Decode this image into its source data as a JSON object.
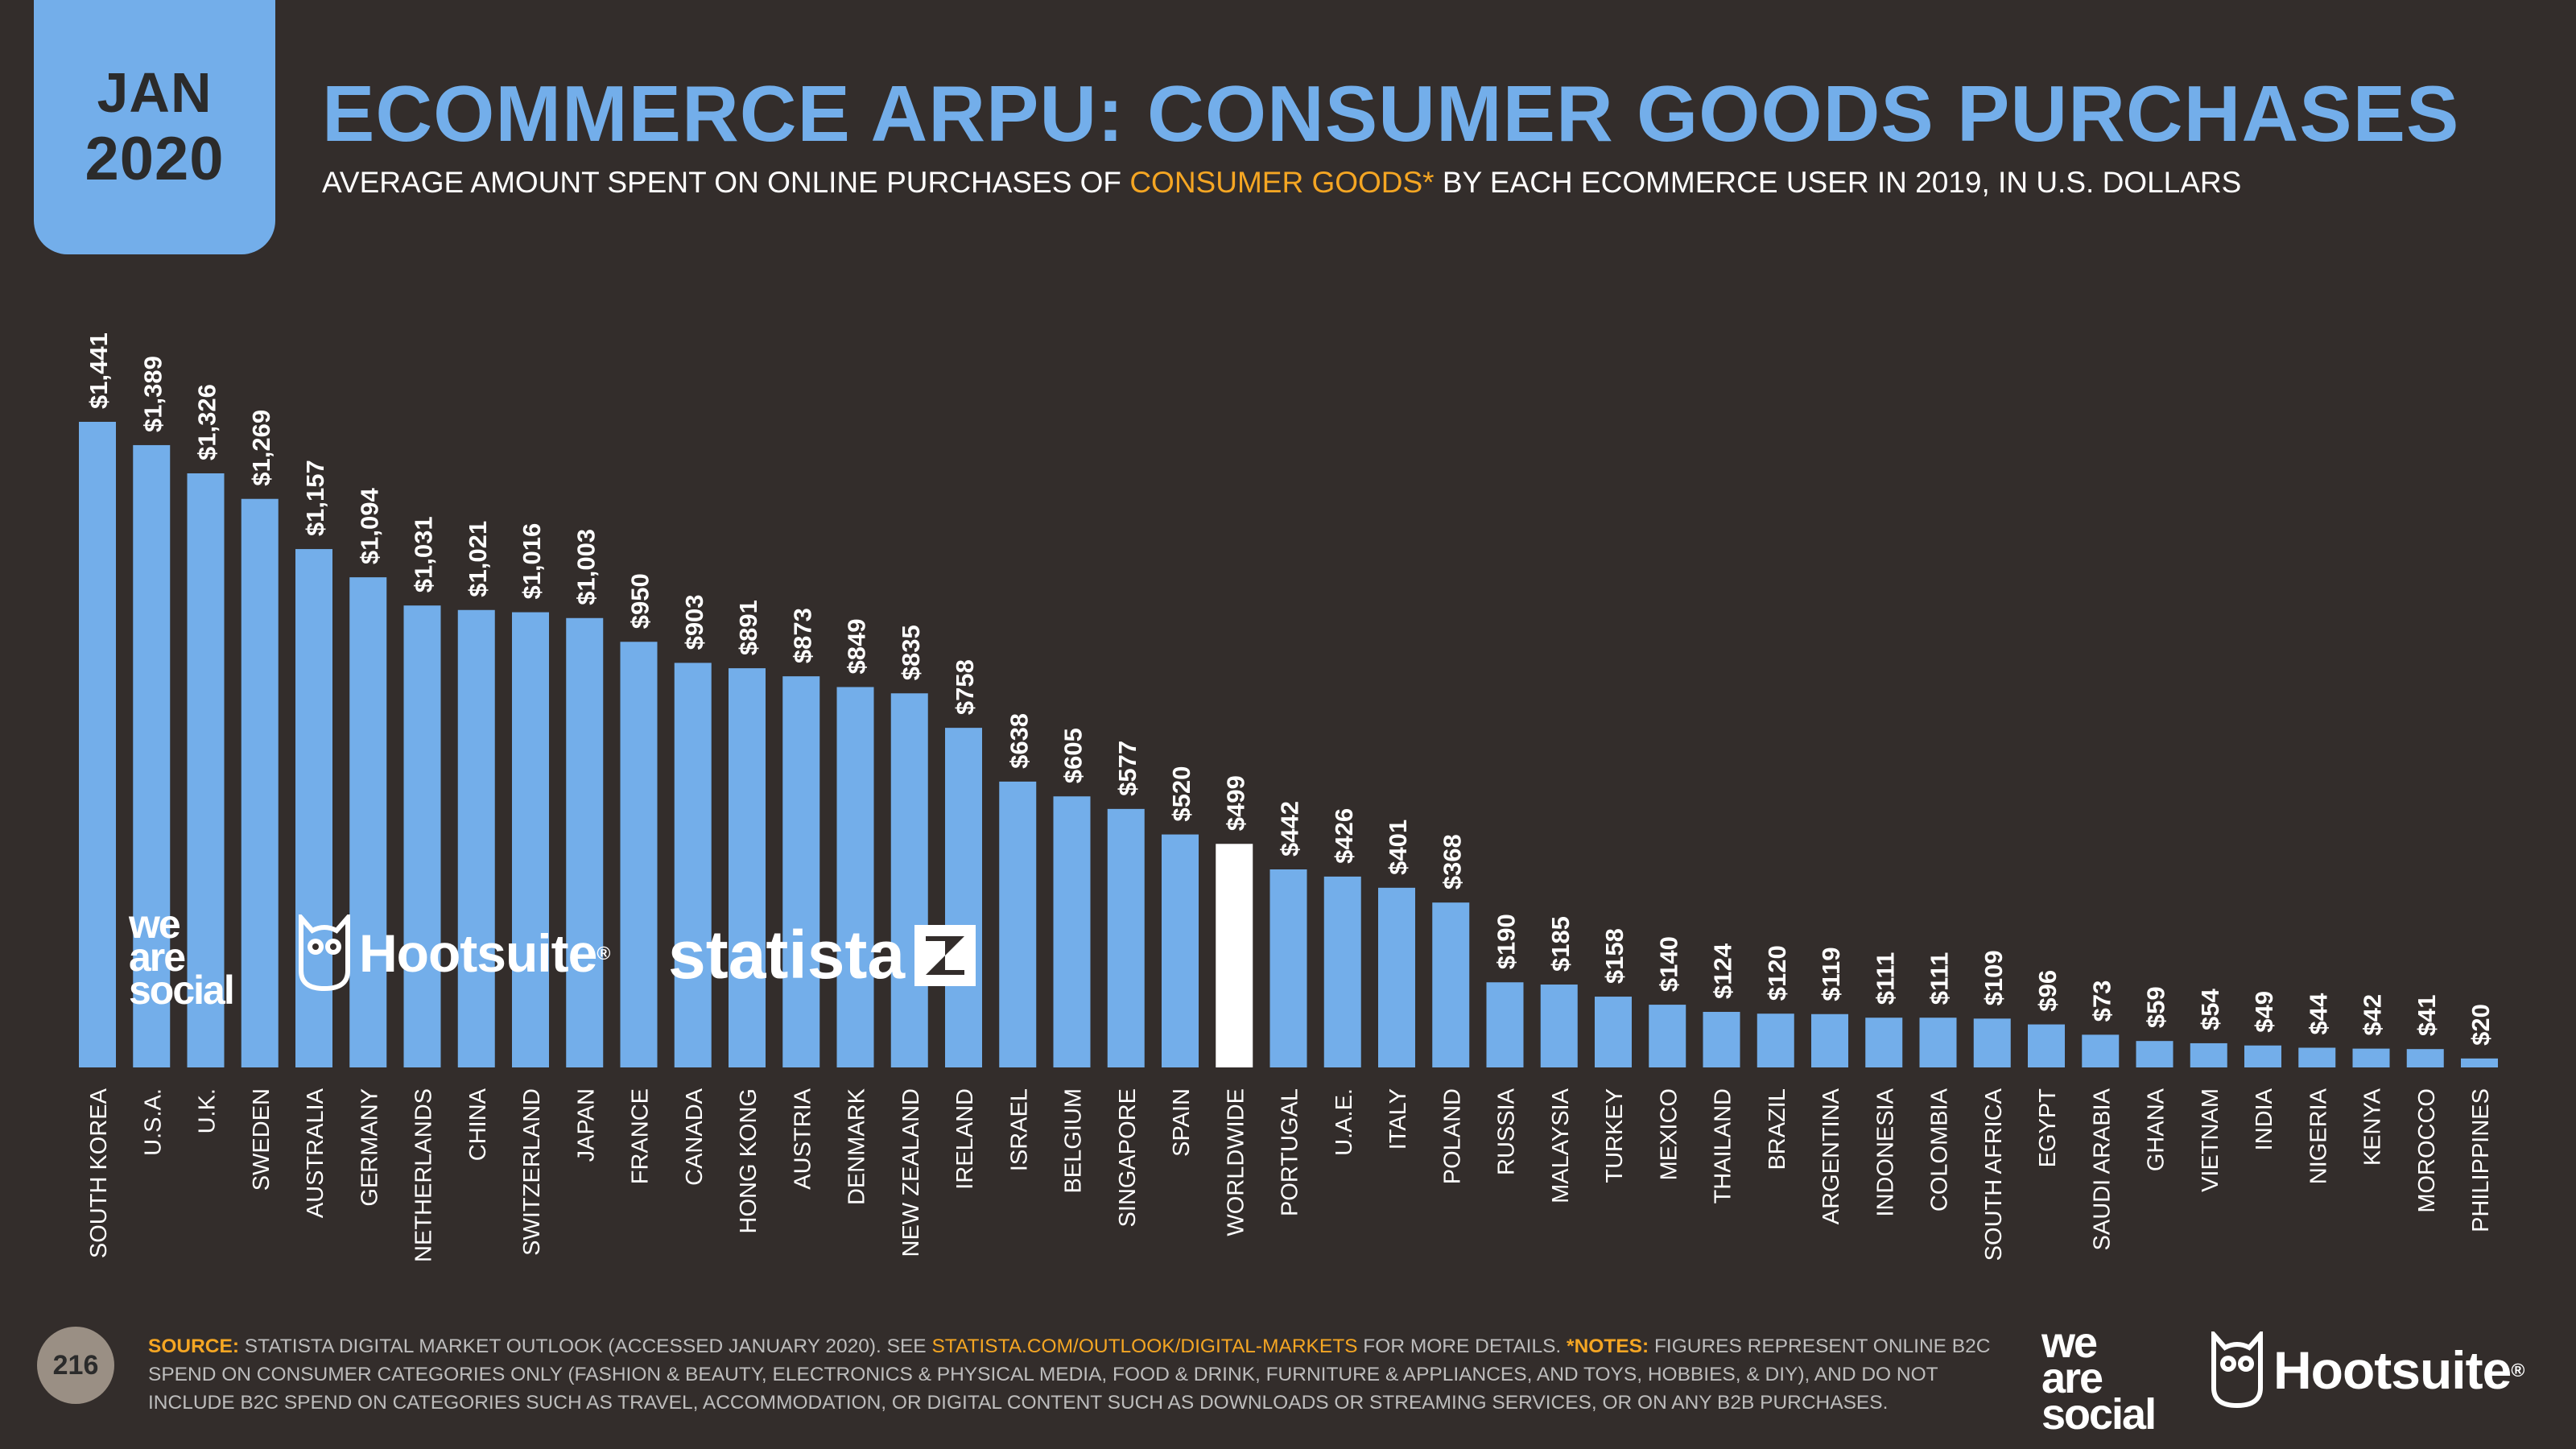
{
  "header": {
    "month": "JAN",
    "year": "2020",
    "title": "ECOMMERCE ARPU: CONSUMER GOODS PURCHASES",
    "subtitle_before": "AVERAGE AMOUNT SPENT ON ONLINE PURCHASES OF ",
    "subtitle_highlight": "CONSUMER GOODS*",
    "subtitle_after": " BY EACH ECOMMERCE USER IN 2019, IN U.S. DOLLARS"
  },
  "colors": {
    "background": "#332d2b",
    "bar": "#73aeea",
    "highlight_bar": "#ffffff",
    "accent": "#f5a623",
    "axis_text": "#ffffff"
  },
  "chart_data": {
    "type": "bar",
    "title": "ECOMMERCE ARPU: CONSUMER GOODS PURCHASES",
    "xlabel": "",
    "ylabel": "",
    "ylim": [
      0,
      1441
    ],
    "grid": false,
    "highlight": "WORLDWIDE",
    "categories": [
      "SOUTH KOREA",
      "U.S.A.",
      "U.K.",
      "SWEDEN",
      "AUSTRALIA",
      "GERMANY",
      "NETHERLANDS",
      "CHINA",
      "SWITZERLAND",
      "JAPAN",
      "FRANCE",
      "CANADA",
      "HONG KONG",
      "AUSTRIA",
      "DENMARK",
      "NEW ZEALAND",
      "IRELAND",
      "ISRAEL",
      "BELGIUM",
      "SINGAPORE",
      "SPAIN",
      "WORLDWIDE",
      "PORTUGAL",
      "U.A.E.",
      "ITALY",
      "POLAND",
      "RUSSIA",
      "MALAYSIA",
      "TURKEY",
      "MEXICO",
      "THAILAND",
      "BRAZIL",
      "ARGENTINA",
      "INDONESIA",
      "COLOMBIA",
      "SOUTH AFRICA",
      "EGYPT",
      "SAUDI ARABIA",
      "GHANA",
      "VIETNAM",
      "INDIA",
      "NIGERIA",
      "KENYA",
      "MOROCCO",
      "PHILIPPINES"
    ],
    "values": [
      1441,
      1389,
      1326,
      1269,
      1157,
      1094,
      1031,
      1021,
      1016,
      1003,
      950,
      903,
      891,
      873,
      849,
      835,
      758,
      638,
      605,
      577,
      520,
      499,
      442,
      426,
      401,
      368,
      190,
      185,
      158,
      140,
      124,
      120,
      119,
      111,
      111,
      109,
      96,
      73,
      59,
      54,
      49,
      44,
      42,
      41,
      20
    ],
    "labels": [
      "$1,441",
      "$1,389",
      "$1,326",
      "$1,269",
      "$1,157",
      "$1,094",
      "$1,031",
      "$1,021",
      "$1,016",
      "$1,003",
      "$950",
      "$903",
      "$891",
      "$873",
      "$849",
      "$835",
      "$758",
      "$638",
      "$605",
      "$577",
      "$520",
      "$499",
      "$442",
      "$426",
      "$401",
      "$368",
      "$190",
      "$185",
      "$158",
      "$140",
      "$124",
      "$120",
      "$119",
      "$111",
      "$111",
      "$109",
      "$96",
      "$73",
      "$59",
      "$54",
      "$49",
      "$44",
      "$42",
      "$41",
      "$20"
    ]
  },
  "footer": {
    "page_number": "216",
    "source_label": "SOURCE:",
    "source_text": " STATISTA DIGITAL MARKET OUTLOOK (ACCESSED JANUARY 2020). SEE ",
    "source_link": "STATISTA.COM/OUTLOOK/DIGITAL-MARKETS",
    "source_after": " FOR MORE DETAILS. ",
    "notes_label": "*NOTES:",
    "notes_line1": " FIGURES REPRESENT ONLINE B2C",
    "notes_line2": "SPEND ON CONSUMER CATEGORIES ONLY (FASHION & BEAUTY, ELECTRONICS & PHYSICAL MEDIA, FOOD & DRINK, FURNITURE & APPLIANCES, AND TOYS, HOBBIES, & DIY), AND DO NOT",
    "notes_line3": "INCLUDE B2C SPEND ON CATEGORIES SUCH AS TRAVEL, ACCOMMODATION, OR DIGITAL CONTENT SUCH AS DOWNLOADS OR STREAMING SERVICES, OR ON ANY B2B PURCHASES."
  },
  "logos": {
    "was_1": "we",
    "was_2": "are",
    "was_3": "social",
    "hootsuite": "Hootsuite",
    "statista": "statista",
    "registered": "®"
  }
}
